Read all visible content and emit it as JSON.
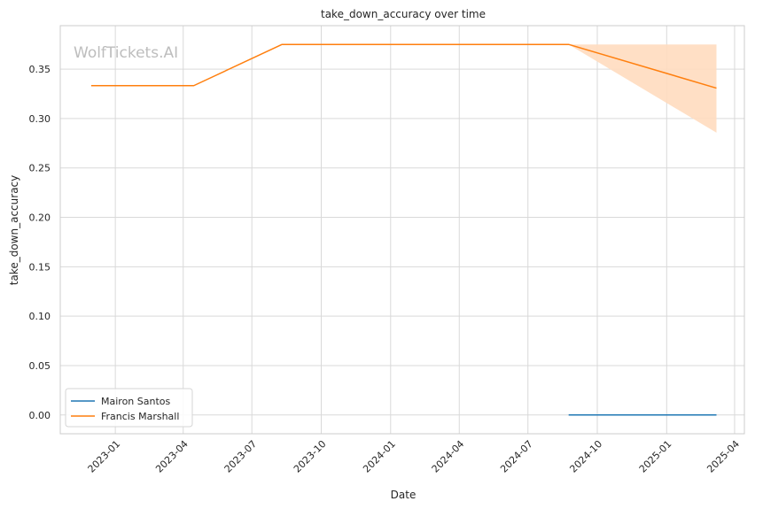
{
  "colors": {
    "Mairon Santos": "#1f77b4",
    "Francis Marshall": "#ff7f0e",
    "band": "#ffdcbf",
    "grid": "#d9d9d9",
    "frame": "#cccccc"
  },
  "watermark": "WolfTickets.AI",
  "chart_data": {
    "type": "line",
    "title": "take_down_accuracy over time",
    "xlabel": "Date",
    "ylabel": "take_down_accuracy",
    "x_scale": "date",
    "xlim": [
      "2022-10-20",
      "2025-04-14"
    ],
    "ylim": [
      -0.019,
      0.394
    ],
    "x_ticks": [
      "2023-01",
      "2023-04",
      "2023-07",
      "2023-10",
      "2024-01",
      "2024-04",
      "2024-07",
      "2024-10",
      "2025-01",
      "2025-04"
    ],
    "y_ticks": [
      "0.00",
      "0.05",
      "0.10",
      "0.15",
      "0.20",
      "0.25",
      "0.30",
      "0.35"
    ],
    "grid": true,
    "legend_position": "lower-left",
    "series": [
      {
        "name": "Mairon Santos",
        "x": [
          "2024-08-24",
          "2025-03-08"
        ],
        "y": [
          0.0,
          0.0
        ]
      },
      {
        "name": "Francis Marshall",
        "x": [
          "2022-11-30",
          "2023-04-15",
          "2023-08-10",
          "2024-08-24",
          "2025-03-08"
        ],
        "y": [
          0.3333,
          0.3333,
          0.375,
          0.375,
          0.3308
        ],
        "band": {
          "x": [
            "2024-08-24",
            "2025-03-08"
          ],
          "lower": [
            0.375,
            0.2857
          ],
          "upper": [
            0.375,
            0.375
          ]
        }
      }
    ]
  }
}
